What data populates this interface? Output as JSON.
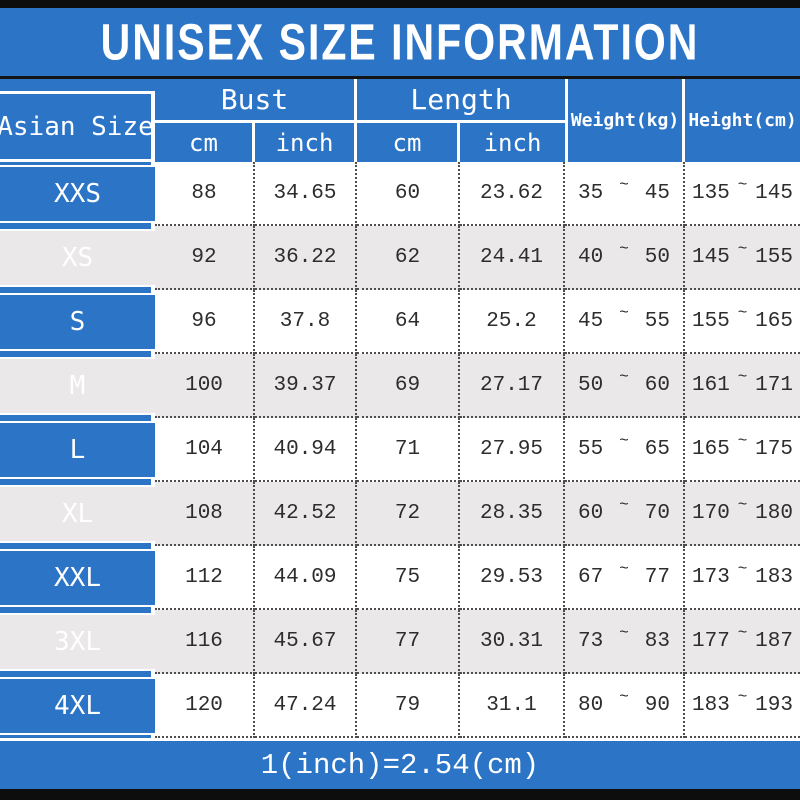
{
  "title": "UNISEX SIZE INFORMATION",
  "footer": "1(inch)=2.54(cm)",
  "colors": {
    "header_blue": "#2C74C6",
    "alt_row_gray": "#EAE8E8",
    "bar_black": "#0D0D0D",
    "text_dark": "#2D2D2D"
  },
  "table": {
    "corner_header": "Asian Size",
    "group_headers": {
      "bust": "Bust",
      "length": "Length"
    },
    "sub_headers": {
      "bust_cm": "cm",
      "bust_inch": "inch",
      "length_cm": "cm",
      "length_inch": "inch"
    },
    "span_headers": {
      "weight": "Weight(kg)",
      "height": "Height(cm)"
    },
    "tilde": "~",
    "rows": [
      {
        "size": "XXS",
        "bust_cm": "88",
        "bust_inch": "34.65",
        "length_cm": "60",
        "length_inch": "23.62",
        "weight_min": "35",
        "weight_max": "45",
        "height_min": "135",
        "height_max": "145"
      },
      {
        "size": "XS",
        "bust_cm": "92",
        "bust_inch": "36.22",
        "length_cm": "62",
        "length_inch": "24.41",
        "weight_min": "40",
        "weight_max": "50",
        "height_min": "145",
        "height_max": "155"
      },
      {
        "size": "S",
        "bust_cm": "96",
        "bust_inch": "37.8",
        "length_cm": "64",
        "length_inch": "25.2",
        "weight_min": "45",
        "weight_max": "55",
        "height_min": "155",
        "height_max": "165"
      },
      {
        "size": "M",
        "bust_cm": "100",
        "bust_inch": "39.37",
        "length_cm": "69",
        "length_inch": "27.17",
        "weight_min": "50",
        "weight_max": "60",
        "height_min": "161",
        "height_max": "171"
      },
      {
        "size": "L",
        "bust_cm": "104",
        "bust_inch": "40.94",
        "length_cm": "71",
        "length_inch": "27.95",
        "weight_min": "55",
        "weight_max": "65",
        "height_min": "165",
        "height_max": "175"
      },
      {
        "size": "XL",
        "bust_cm": "108",
        "bust_inch": "42.52",
        "length_cm": "72",
        "length_inch": "28.35",
        "weight_min": "60",
        "weight_max": "70",
        "height_min": "170",
        "height_max": "180"
      },
      {
        "size": "XXL",
        "bust_cm": "112",
        "bust_inch": "44.09",
        "length_cm": "75",
        "length_inch": "29.53",
        "weight_min": "67",
        "weight_max": "77",
        "height_min": "173",
        "height_max": "183"
      },
      {
        "size": "3XL",
        "bust_cm": "116",
        "bust_inch": "45.67",
        "length_cm": "77",
        "length_inch": "30.31",
        "weight_min": "73",
        "weight_max": "83",
        "height_min": "177",
        "height_max": "187"
      },
      {
        "size": "4XL",
        "bust_cm": "120",
        "bust_inch": "47.24",
        "length_cm": "79",
        "length_inch": "31.1",
        "weight_min": "80",
        "weight_max": "90",
        "height_min": "183",
        "height_max": "193"
      }
    ]
  }
}
